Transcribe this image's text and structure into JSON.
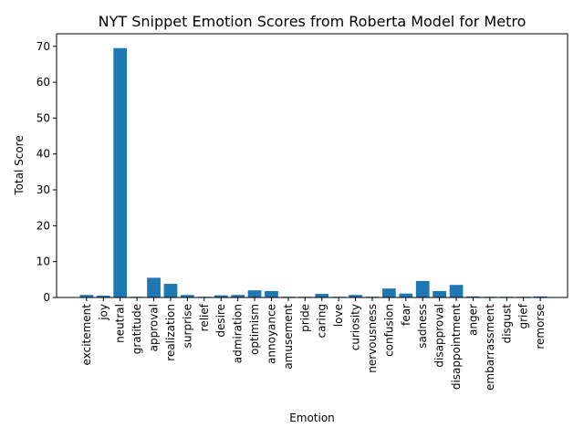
{
  "chart_data": {
    "type": "bar",
    "title": "NYT Snippet Emotion Scores from Roberta Model for Metro",
    "xlabel": "Emotion",
    "ylabel": "Total Score",
    "ylim": [
      0,
      73.5
    ],
    "yticks": [
      0,
      10,
      20,
      30,
      40,
      50,
      60,
      70
    ],
    "grid": false,
    "bar_color": "#1f77b4",
    "categories": [
      "excitement",
      "joy",
      "neutral",
      "gratitude",
      "approval",
      "realization",
      "surprise",
      "relief",
      "desire",
      "admiration",
      "optimism",
      "annoyance",
      "amusement",
      "pride",
      "caring",
      "love",
      "curiosity",
      "nervousness",
      "confusion",
      "fear",
      "sadness",
      "disapproval",
      "disappointment",
      "anger",
      "embarrassment",
      "disgust",
      "grief",
      "remorse"
    ],
    "values": [
      0.7,
      0.5,
      69.5,
      0.2,
      5.5,
      3.8,
      0.7,
      0.2,
      0.6,
      0.7,
      2.0,
      1.8,
      0.2,
      0.2,
      1.0,
      0.2,
      0.7,
      0.2,
      2.5,
      1.1,
      4.6,
      1.8,
      3.5,
      0.3,
      0.2,
      0.2,
      0.2,
      0.3
    ]
  }
}
